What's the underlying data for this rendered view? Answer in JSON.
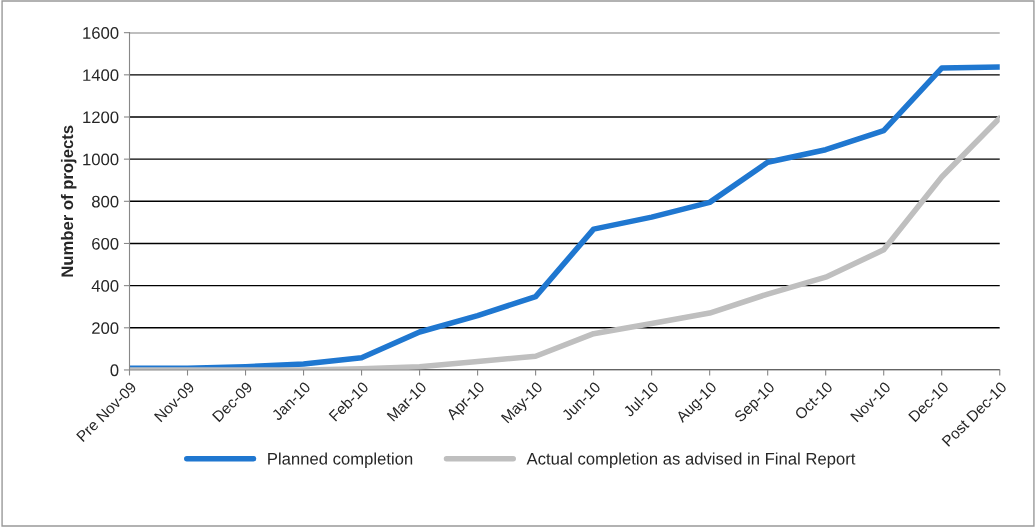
{
  "chart_data": {
    "type": "line",
    "ylabel": "Number of projects",
    "categories": [
      "Pre Nov-09",
      "Nov-09",
      "Dec-09",
      "Jan-10",
      "Feb-10",
      "Mar-10",
      "Apr-10",
      "May-10",
      "Jun-10",
      "Jul-10",
      "Aug-10",
      "Sep-10",
      "Oct-10",
      "Nov-10",
      "Dec-10",
      "Post Dec-10"
    ],
    "series": [
      {
        "name": "Planned completion",
        "color": "#1f77d0",
        "values": [
          8,
          8,
          15,
          28,
          58,
          180,
          258,
          348,
          668,
          725,
          795,
          985,
          1045,
          1135,
          1432,
          1437
        ]
      },
      {
        "name": "Actual completion as advised in Final Report",
        "color": "#bfbfbf",
        "values": [
          0,
          0,
          0,
          0,
          5,
          15,
          40,
          65,
          172,
          220,
          270,
          360,
          440,
          570,
          915,
          1195
        ]
      }
    ],
    "ylim": [
      0,
      1600
    ],
    "yticks": [
      0,
      200,
      400,
      600,
      800,
      1000,
      1200,
      1400,
      1600
    ],
    "grid": "y",
    "legend": "bottom",
    "marker": "none",
    "line_style": "solid"
  }
}
